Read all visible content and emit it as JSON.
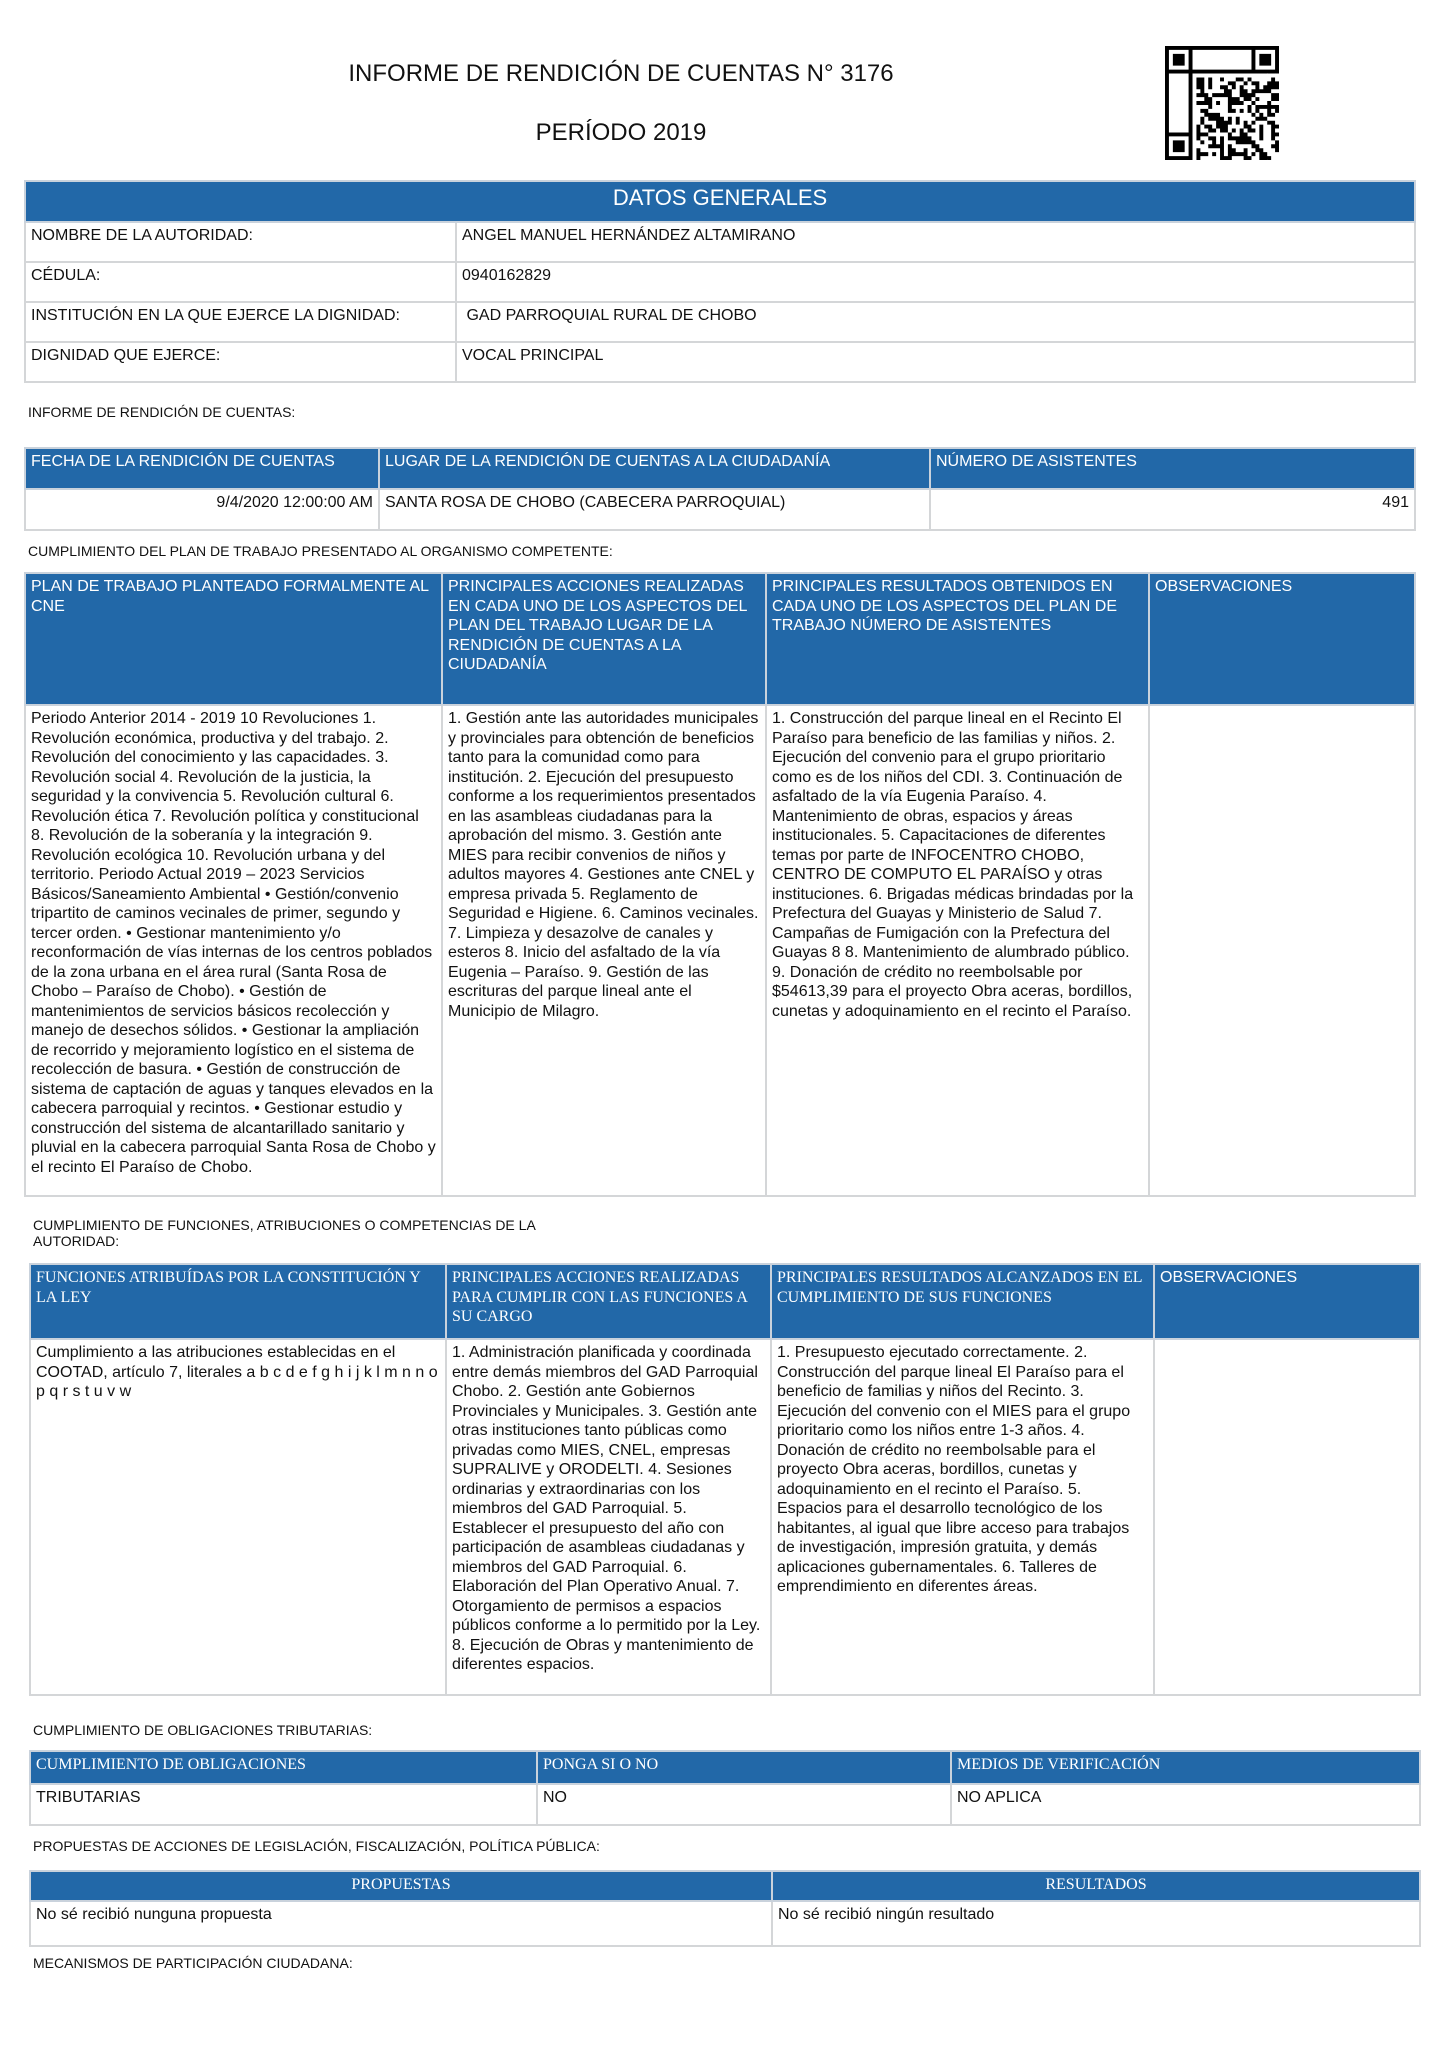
{
  "header": {
    "title": "INFORME DE RENDICIÓN DE CUENTAS N° 3176",
    "period": "PERÍODO 2019",
    "qr_icon": "qr-code-icon"
  },
  "datos": {
    "heading": "DATOS GENERALES",
    "rows": [
      {
        "label": "NOMBRE DE LA AUTORIDAD:",
        "value": "ANGEL MANUEL HERNÁNDEZ ALTAMIRANO"
      },
      {
        "label": "CÉDULA:",
        "value": "0940162829"
      },
      {
        "label": "INSTITUCIÓN EN LA QUE EJERCE LA DIGNIDAD:",
        "value": " GAD PARROQUIAL RURAL DE CHOBO"
      },
      {
        "label": "DIGNIDAD QUE EJERCE:",
        "value": "VOCAL PRINCIPAL"
      }
    ]
  },
  "informe": {
    "label": "INFORME DE RENDICIÓN DE CUENTAS:",
    "headers": [
      "FECHA DE LA RENDICIÓN DE CUENTAS",
      "LUGAR DE LA RENDICIÓN DE CUENTAS A LA CIUDADANÍA",
      "NÚMERO DE ASISTENTES"
    ],
    "row": [
      "9/4/2020 12:00:00 AM",
      "SANTA ROSA DE CHOBO (CABECERA PARROQUIAL)",
      "491"
    ]
  },
  "plan": {
    "label": "CUMPLIMIENTO DEL PLAN DE TRABAJO PRESENTADO AL ORGANISMO COMPETENTE:",
    "headers": [
      "PLAN DE TRABAJO PLANTEADO FORMALMENTE AL CNE",
      "PRINCIPALES ACCIONES REALIZADAS EN CADA UNO DE LOS ASPECTOS DEL PLAN DEL TRABAJO LUGAR DE LA RENDICIÓN DE CUENTAS A LA CIUDADANÍA",
      "PRINCIPALES RESULTADOS OBTENIDOS EN CADA UNO DE LOS ASPECTOS DEL PLAN DE TRABAJO  NÚMERO DE ASISTENTES",
      "OBSERVACIONES"
    ],
    "row": [
      "Periodo Anterior 2014 - 2019 10 Revoluciones 1. Revolución económica, productiva y del trabajo. 2. Revolución del conocimiento y las capacidades. 3. Revolución social 4. Revolución de la justicia, la seguridad y la convivencia 5. Revolución cultural 6. Revolución ética 7. Revolución política y constitucional 8. Revolución de la soberanía y la integración 9. Revolución ecológica 10. Revolución urbana y del territorio. Periodo Actual 2019 – 2023 Servicios Básicos/Saneamiento Ambiental • Gestión/convenio tripartito de caminos vecinales de primer, segundo y tercer orden. • Gestionar mantenimiento y/o reconformación de vías internas de los centros poblados de la zona urbana en el área rural (Santa Rosa de Chobo – Paraíso de Chobo). • Gestión de mantenimientos de servicios básicos recolección y manejo de desechos sólidos. • Gestionar la ampliación de recorrido y mejoramiento logístico en el sistema de recolección de basura. • Gestión de construcción de sistema de captación de aguas y tanques elevados en la cabecera parroquial y recintos. • Gestionar estudio y construcción del sistema de alcantarillado sanitario y pluvial en la cabecera parroquial Santa Rosa de Chobo y el recinto El Paraíso de Chobo.",
      "1. Gestión ante las autoridades municipales y provinciales para obtención de beneficios tanto para la comunidad como para institución. 2. Ejecución del presupuesto conforme a los requerimientos presentados en las asambleas ciudadanas para la aprobación del mismo. 3. Gestión ante MIES para recibir convenios de niños y adultos mayores 4. Gestiones ante CNEL y empresa privada 5. Reglamento de Seguridad e Higiene. 6. Caminos vecinales. 7. Limpieza y desazolve de canales y esteros 8. Inicio del asfaltado de la vía Eugenia – Paraíso. 9. Gestión de las escrituras del parque lineal ante el Municipio de Milagro.",
      "1. Construcción del parque lineal en el Recinto El Paraíso para beneficio de las familias y niños. 2. Ejecución del convenio para el grupo prioritario como es de los niños del CDI. 3. Continuación de asfaltado de la vía Eugenia Paraíso. 4. Mantenimiento de obras, espacios y áreas institucionales. 5. Capacitaciones de diferentes temas por parte de INFOCENTRO CHOBO, CENTRO DE COMPUTO EL PARAÍSO y otras instituciones. 6. Brigadas médicas brindadas por la Prefectura del Guayas y Ministerio de Salud 7. Campañas de Fumigación con la Prefectura del Guayas 8 8. Mantenimiento de alumbrado público. 9. Donación de crédito no reembolsable por $54613,39 para el proyecto Obra aceras, bordillos, cunetas y adoquinamiento en el recinto el Paraíso.",
      ""
    ]
  },
  "funciones": {
    "label": "CUMPLIMIENTO DE FUNCIONES,  ATRIBUCIONES O COMPETENCIAS DE  LA AUTORIDAD:",
    "headers": [
      "FUNCIONES ATRIBUÍDAS POR LA CONSTITUCIÓN Y LA LEY",
      "PRINCIPALES ACCIONES REALIZADAS PARA CUMPLIR CON LAS FUNCIONES A SU CARGO",
      "PRINCIPALES RESULTADOS ALCANZADOS EN EL CUMPLIMIENTO DE SUS FUNCIONES",
      "OBSERVACIONES"
    ],
    "row": [
      "Cumplimiento a las atribuciones establecidas en el COOTAD, artículo 7, literales a b c d e f g h i j k l m n n o p q r s t u v w",
      "1. Administración planificada y coordinada entre demás miembros del GAD Parroquial Chobo. 2. Gestión ante Gobiernos Provinciales y Municipales. 3. Gestión ante otras instituciones tanto públicas como privadas como MIES, CNEL, empresas SUPRALIVE y ORODELTI. 4. Sesiones ordinarias y extraordinarias con los miembros del GAD Parroquial. 5. Establecer el presupuesto del año con participación de asambleas ciudadanas y miembros del GAD Parroquial. 6. Elaboración del Plan Operativo Anual. 7. Otorgamiento de permisos a espacios públicos conforme a lo permitido por la Ley. 8. Ejecución de Obras y mantenimiento de diferentes espacios.",
      "1. Presupuesto ejecutado correctamente. 2. Construcción del parque lineal El Paraíso para el beneficio de familias y niños del Recinto. 3. Ejecución del convenio con el MIES para el grupo prioritario como los niños entre 1-3 años. 4. Donación de crédito no reembolsable para el proyecto Obra aceras, bordillos, cunetas y adoquinamiento en el recinto el Paraíso. 5. Espacios para el desarrollo tecnológico de los habitantes, al igual que libre acceso para trabajos de investigación, impresión gratuita, y demás aplicaciones gubernamentales. 6. Talleres de emprendimiento en diferentes áreas.",
      ""
    ]
  },
  "tributarias": {
    "label": "CUMPLIMIENTO DE OBLIGACIONES TRIBUTARIAS:",
    "headers": [
      "CUMPLIMIENTO DE OBLIGACIONES",
      "PONGA SI O NO",
      "MEDIOS DE VERIFICACIÓN"
    ],
    "row": [
      "TRIBUTARIAS",
      "NO",
      "NO APLICA"
    ]
  },
  "propuestas": {
    "label": "PROPUESTAS DE ACCIONES DE LEGISLACIÓN, FISCALIZACIÓN, POLÍTICA PÚBLICA:",
    "headers": [
      "PROPUESTAS",
      "RESULTADOS"
    ],
    "row": [
      "No sé recibió nunguna propuesta",
      "No sé recibió ningún resultado"
    ]
  },
  "mecanismos": {
    "label": "MECANISMOS DE PARTICIPACIÓN CIUDADANA:"
  },
  "colors": {
    "header_blue": "#2268a8",
    "border": "#d4d6d8"
  }
}
